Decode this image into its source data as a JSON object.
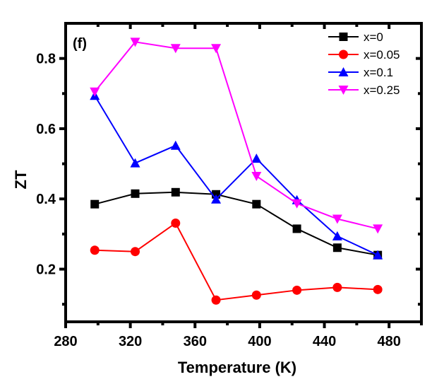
{
  "chart_data": {
    "type": "line",
    "panel_label": "(f)",
    "xlabel": "Temperature (K)",
    "ylabel": "ZT",
    "xlim": [
      280,
      500
    ],
    "ylim": [
      0.05,
      0.9
    ],
    "xticks": [
      280,
      320,
      360,
      400,
      440,
      480
    ],
    "xtick_labels": [
      "280",
      "320",
      "360",
      "400",
      "440",
      "480"
    ],
    "yticks": [
      0.2,
      0.4,
      0.6,
      0.8
    ],
    "ytick_labels": [
      "0.2",
      "0.4",
      "0.6",
      "0.8"
    ],
    "x_minor_ticks": [
      300,
      340,
      380,
      420,
      460,
      500
    ],
    "y_minor_ticks": [
      0.1,
      0.3,
      0.5,
      0.7
    ],
    "grid": false,
    "legend_position": "top-right",
    "x": [
      298,
      323,
      348,
      373,
      398,
      423,
      448,
      473
    ],
    "series": [
      {
        "name": "x=0",
        "color": "#000000",
        "marker": "square",
        "values": [
          0.385,
          0.415,
          0.419,
          0.413,
          0.385,
          0.315,
          0.261,
          0.24
        ]
      },
      {
        "name": "x=0.05",
        "color": "#ff0000",
        "marker": "circle",
        "values": [
          0.254,
          0.25,
          0.331,
          0.112,
          0.126,
          0.14,
          0.148,
          0.142
        ]
      },
      {
        "name": "x=0.1",
        "color": "#0000ff",
        "marker": "triangle-up",
        "values": [
          0.694,
          0.502,
          0.552,
          0.399,
          0.515,
          0.397,
          0.294,
          0.24
        ]
      },
      {
        "name": "x=0.25",
        "color": "#ff00ff",
        "marker": "triangle-down",
        "values": [
          0.705,
          0.847,
          0.829,
          0.829,
          0.465,
          0.387,
          0.343,
          0.315
        ]
      }
    ]
  }
}
